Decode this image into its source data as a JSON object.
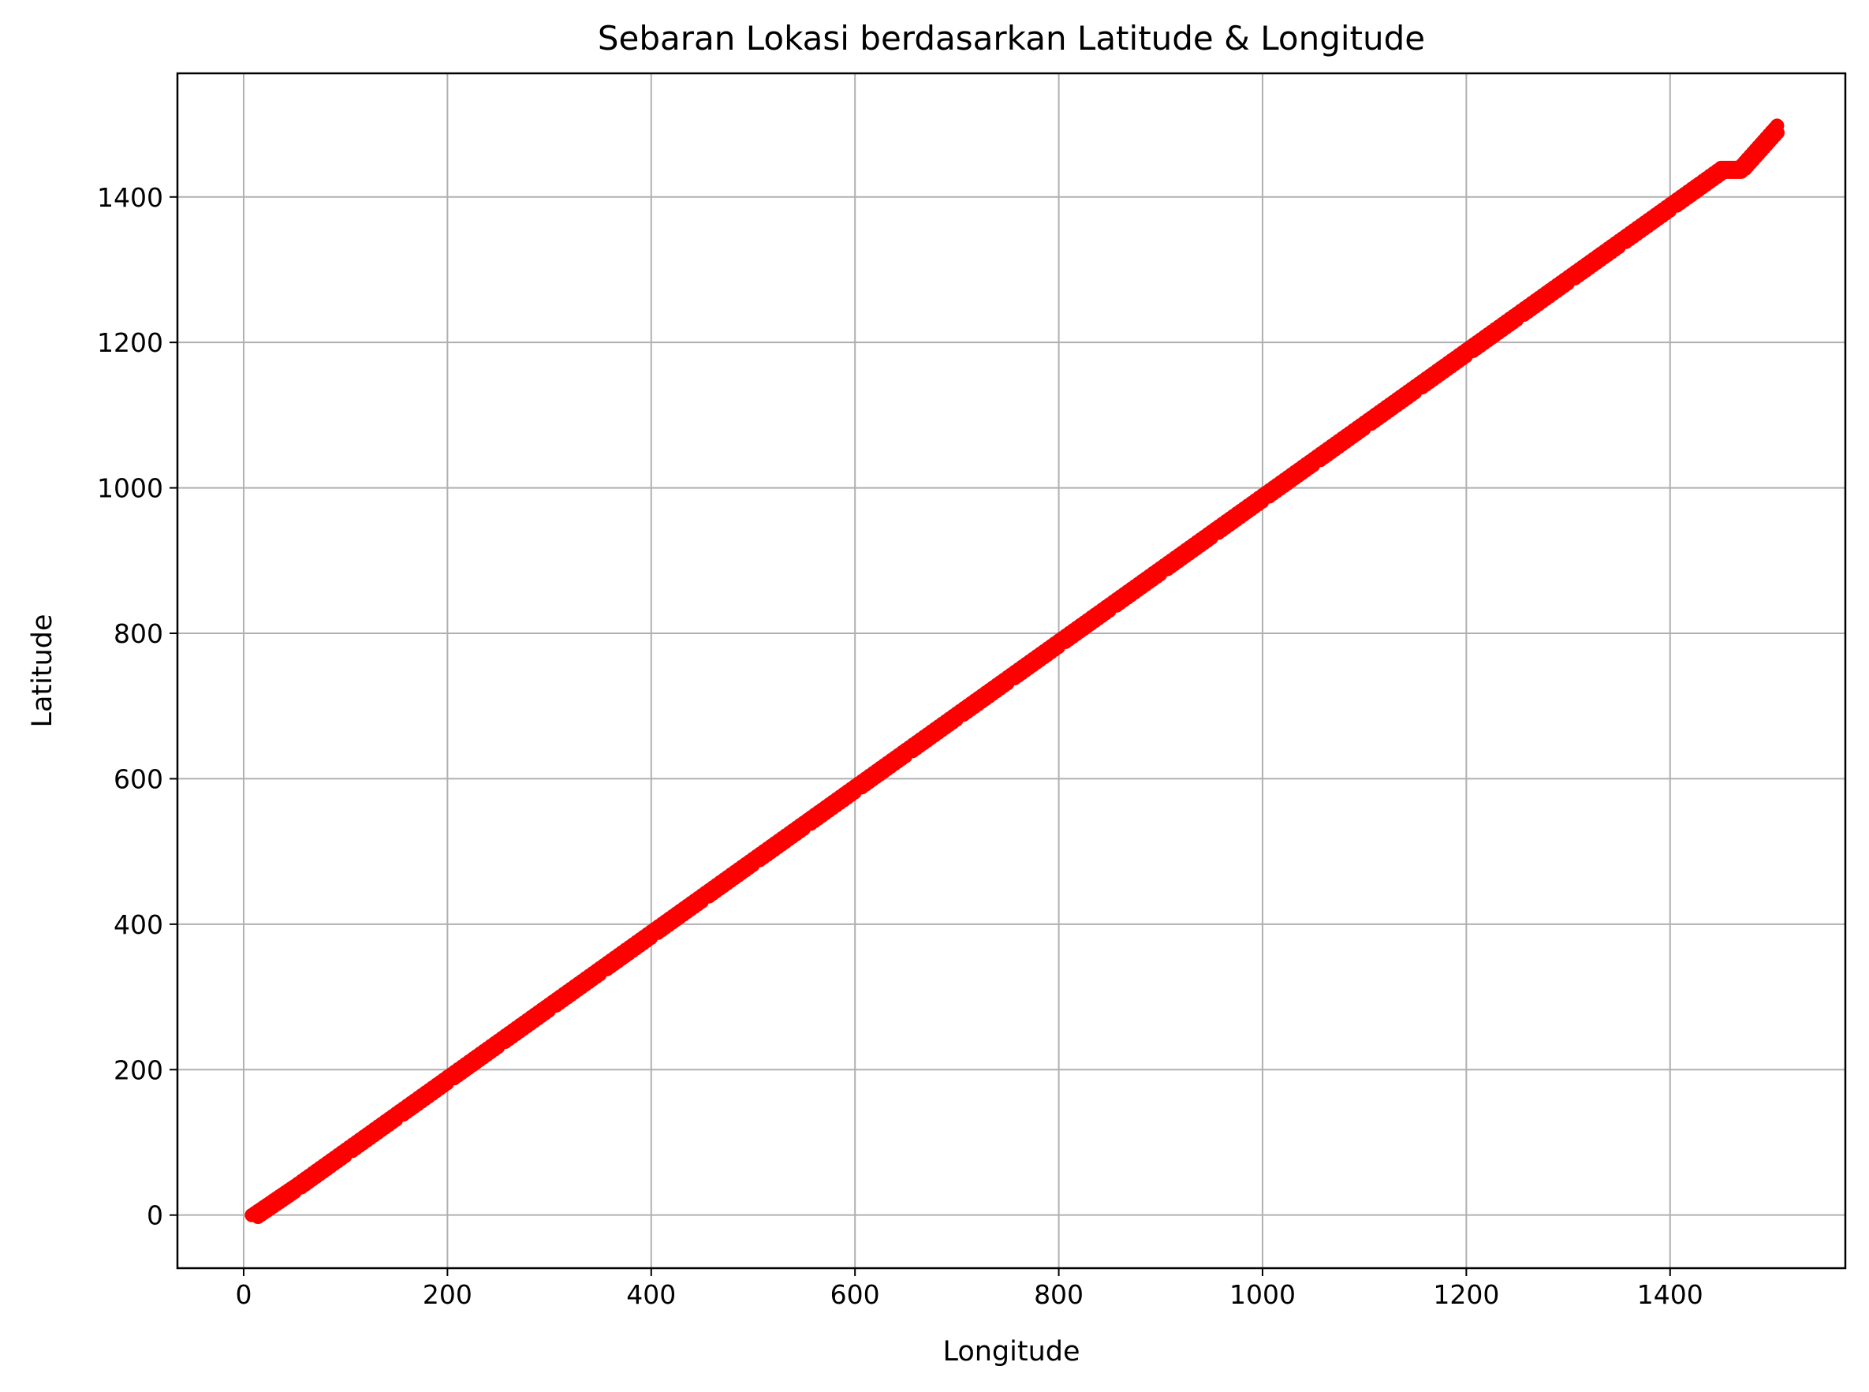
{
  "chart_data": {
    "type": "scatter",
    "title": "Sebaran Lokasi berdasarkan Latitude & Longitude",
    "xlabel": "Longitude",
    "ylabel": "Latitude",
    "xlim": [
      -65,
      1572
    ],
    "ylim": [
      -73,
      1570
    ],
    "xticks": [
      0,
      200,
      400,
      600,
      800,
      1000,
      1200,
      1400
    ],
    "yticks": [
      0,
      200,
      400,
      600,
      800,
      1000,
      1200,
      1400
    ],
    "grid": true,
    "marker_color": "#ff0000",
    "series": [
      {
        "points": [
          [
            8,
            0
          ],
          [
            50,
            40
          ],
          [
            100,
            90
          ],
          [
            150,
            140
          ],
          [
            200,
            190
          ],
          [
            250,
            240
          ],
          [
            300,
            290
          ],
          [
            350,
            340
          ],
          [
            400,
            390
          ],
          [
            450,
            440
          ],
          [
            500,
            490
          ],
          [
            550,
            540
          ],
          [
            600,
            590
          ],
          [
            650,
            640
          ],
          [
            700,
            690
          ],
          [
            750,
            740
          ],
          [
            800,
            790
          ],
          [
            850,
            840
          ],
          [
            900,
            890
          ],
          [
            950,
            940
          ],
          [
            1000,
            990
          ],
          [
            1050,
            1040
          ],
          [
            1100,
            1090
          ],
          [
            1150,
            1140
          ],
          [
            1200,
            1190
          ],
          [
            1250,
            1240
          ],
          [
            1300,
            1290
          ],
          [
            1350,
            1340
          ],
          [
            1400,
            1390
          ],
          [
            1450,
            1440
          ],
          [
            1468,
            1440
          ],
          [
            1505,
            1498
          ]
        ]
      }
    ]
  }
}
